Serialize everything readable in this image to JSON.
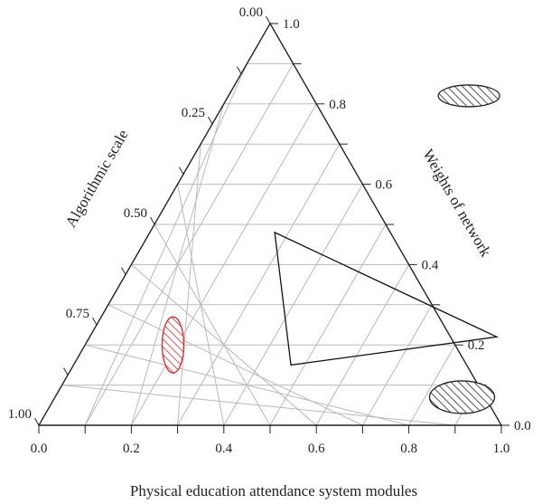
{
  "chart_data": {
    "type": "ternary",
    "axes": {
      "bottom": {
        "label": "Physical education attendance system modules",
        "ticks": [
          "0.0",
          "0.2",
          "0.4",
          "0.6",
          "0.8",
          "1.0"
        ]
      },
      "left": {
        "label": "Algorithmic scale",
        "ticks": [
          "0.00",
          "0.25",
          "0.50",
          "0.75",
          "1.00"
        ]
      },
      "right": {
        "label": "Weights of network",
        "ticks": [
          "0.0",
          "0.2",
          "0.4",
          "0.6",
          "0.8",
          "1.0"
        ]
      }
    },
    "grid": true,
    "grid_step": 0.1,
    "regions": [
      {
        "shape": "ellipse",
        "fill": "hatched",
        "color": "#222222",
        "center": {
          "bottom": 0.52,
          "right": 0.82
        }
      },
      {
        "shape": "ellipse",
        "fill": "hatched",
        "color": "#e0262b",
        "center": {
          "bottom": 0.19,
          "right": 0.2
        }
      },
      {
        "shape": "ellipse",
        "fill": "hatched",
        "color": "#222222",
        "center": {
          "bottom": 0.88,
          "right": 0.07
        }
      },
      {
        "shape": "triangle",
        "fill": "none",
        "color": "#111111",
        "vertices": [
          {
            "bottom": 0.27,
            "right": 0.48
          },
          {
            "bottom": 0.88,
            "right": 0.22
          },
          {
            "bottom": 0.47,
            "right": 0.15
          }
        ]
      }
    ]
  }
}
